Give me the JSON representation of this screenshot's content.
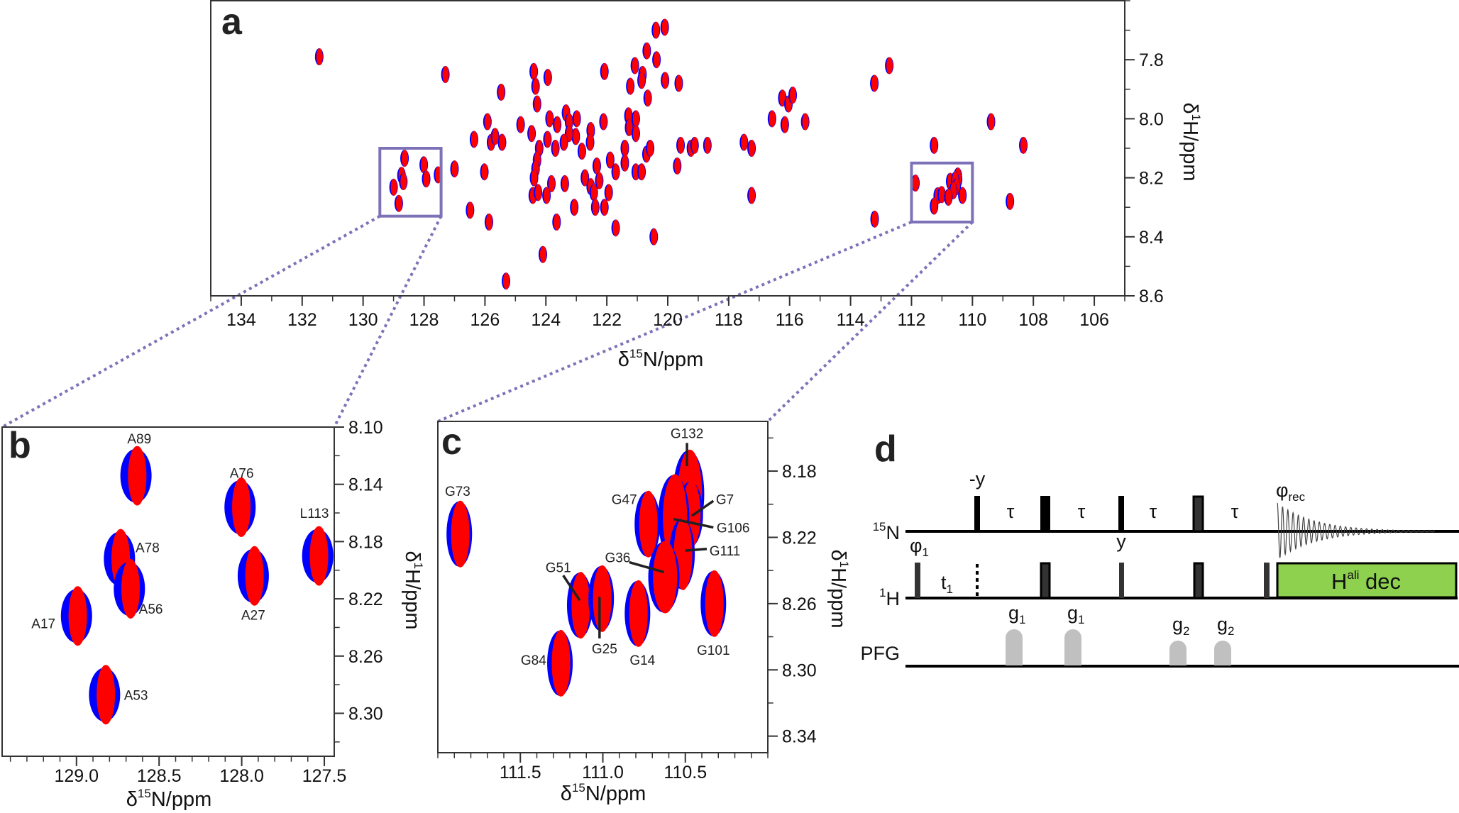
{
  "panel_labels": {
    "a": "a",
    "b": "b",
    "c": "c",
    "d": "d"
  },
  "colors": {
    "spectrum_1": "#0000ff",
    "spectrum_2": "#ff0000",
    "zoom_box": "#7d72b8",
    "decoupling": "#8ed14f",
    "gradient": "#c0c0c0"
  },
  "chart_data": [
    {
      "panel": "a",
      "type": "scatter",
      "description_kind": "2D 1H-15N correlation spectrum, two overlaid spectra (blue, red)",
      "xlabel": {
        "prefix": "δ",
        "sup": "15",
        "main": "N/ppm"
      },
      "ylabel": {
        "prefix": "δ",
        "sup": "1",
        "main": "H/ppm"
      },
      "xlim": [
        135,
        105
      ],
      "ylim": [
        7.6,
        8.6
      ],
      "xticks": [
        "134",
        "132",
        "130",
        "128",
        "126",
        "124",
        "122",
        "120",
        "118",
        "116",
        "114",
        "112",
        "110",
        "108",
        "106"
      ],
      "yticks": [
        "7.8",
        "8.0",
        "8.2",
        "8.4",
        "8.6"
      ],
      "grid": false,
      "peaks": [
        [
          131.44,
          7.79
        ],
        [
          127.3,
          7.85
        ],
        [
          124.4,
          7.84
        ],
        [
          123.94,
          7.86
        ],
        [
          124.34,
          7.89
        ],
        [
          125.47,
          7.91
        ],
        [
          124.29,
          7.95
        ],
        [
          122.08,
          7.84
        ],
        [
          121.08,
          7.82
        ],
        [
          120.83,
          7.85
        ],
        [
          120.86,
          7.87
        ],
        [
          120.69,
          7.77
        ],
        [
          120.37,
          7.8
        ],
        [
          120.39,
          7.7
        ],
        [
          120.1,
          7.69
        ],
        [
          120.09,
          7.87
        ],
        [
          121.23,
          7.89
        ],
        [
          120.66,
          7.93
        ],
        [
          125.92,
          8.01
        ],
        [
          124.83,
          8.02
        ],
        [
          124.47,
          8.05
        ],
        [
          123.88,
          8.0
        ],
        [
          123.34,
          7.98
        ],
        [
          123.63,
          8.02
        ],
        [
          123.24,
          8.01
        ],
        [
          122.99,
          8.0
        ],
        [
          122.11,
          8.01
        ],
        [
          121.29,
          7.99
        ],
        [
          121.27,
          8.03
        ],
        [
          121.05,
          8.0
        ],
        [
          121.05,
          8.05
        ],
        [
          122.53,
          8.04
        ],
        [
          122.55,
          8.08
        ],
        [
          123.02,
          8.06
        ],
        [
          123.24,
          8.05
        ],
        [
          123.41,
          8.08
        ],
        [
          123.69,
          8.1
        ],
        [
          123.95,
          8.07
        ],
        [
          124.22,
          8.1
        ],
        [
          126.36,
          8.07
        ],
        [
          125.8,
          8.08
        ],
        [
          125.44,
          8.08
        ],
        [
          125.67,
          8.06
        ],
        [
          122.82,
          8.11
        ],
        [
          124.29,
          8.14
        ],
        [
          124.34,
          8.17
        ],
        [
          124.39,
          8.2
        ],
        [
          121.89,
          8.14
        ],
        [
          122.33,
          8.16
        ],
        [
          121.41,
          8.1
        ],
        [
          121.41,
          8.15
        ],
        [
          121.71,
          8.18
        ],
        [
          120.7,
          8.12
        ],
        [
          120.58,
          8.1
        ],
        [
          121.05,
          8.18
        ],
        [
          120.86,
          8.18
        ],
        [
          122.72,
          8.2
        ],
        [
          122.53,
          8.23
        ],
        [
          122.25,
          8.21
        ],
        [
          122.43,
          8.25
        ],
        [
          121.94,
          8.25
        ],
        [
          123.82,
          8.22
        ],
        [
          123.38,
          8.22
        ],
        [
          124.43,
          8.26
        ],
        [
          124.26,
          8.25
        ],
        [
          123.98,
          8.26
        ],
        [
          123.07,
          8.3
        ],
        [
          122.38,
          8.3
        ],
        [
          122.08,
          8.3
        ],
        [
          123.65,
          8.35
        ],
        [
          121.71,
          8.37
        ],
        [
          120.46,
          8.4
        ],
        [
          124.1,
          8.46
        ],
        [
          125.31,
          8.55
        ],
        [
          126.49,
          8.31
        ],
        [
          125.87,
          8.35
        ],
        [
          126.02,
          8.18
        ],
        [
          127.0,
          8.17
        ],
        [
          119.64,
          7.88
        ],
        [
          119.58,
          8.09
        ],
        [
          119.24,
          8.1
        ],
        [
          119.12,
          8.09
        ],
        [
          118.7,
          8.09
        ],
        [
          119.69,
          8.16
        ],
        [
          117.5,
          8.08
        ],
        [
          117.25,
          8.1
        ],
        [
          117.25,
          8.26
        ],
        [
          116.58,
          8.0
        ],
        [
          116.24,
          7.93
        ],
        [
          116.04,
          7.95
        ],
        [
          115.9,
          7.92
        ],
        [
          116.16,
          8.02
        ],
        [
          115.49,
          8.01
        ],
        [
          113.22,
          7.88
        ],
        [
          112.73,
          7.82
        ],
        [
          113.21,
          8.34
        ],
        [
          111.26,
          8.09
        ],
        [
          109.39,
          8.01
        ],
        [
          108.33,
          8.09
        ],
        [
          108.77,
          8.28
        ]
      ]
    },
    {
      "panel": "b",
      "type": "scatter",
      "xlabel": {
        "prefix": "δ",
        "sup": "15",
        "main": "N/ppm"
      },
      "ylabel": {
        "prefix": "δ",
        "sup": "1",
        "main": "H/ppm"
      },
      "xlim": [
        129.45,
        127.44
      ],
      "ylim": [
        8.1,
        8.33
      ],
      "xticks": [
        "129.0",
        "128.5",
        "128.0",
        "127.5"
      ],
      "yticks": [
        "8.10",
        "8.14",
        "8.18",
        "8.22",
        "8.26",
        "8.30"
      ],
      "grid": false,
      "peaks": [
        {
          "label": "A89",
          "n": 128.64,
          "h": 8.134
        },
        {
          "label": "A76",
          "n": 128.01,
          "h": 8.156
        },
        {
          "label": "L113",
          "n": 127.54,
          "h": 8.19
        },
        {
          "label": "A78",
          "n": 128.74,
          "h": 8.192
        },
        {
          "label": "A56",
          "n": 128.68,
          "h": 8.213
        },
        {
          "label": "A27",
          "n": 127.93,
          "h": 8.204
        },
        {
          "label": "A17",
          "n": 129.0,
          "h": 8.232
        },
        {
          "label": "A53",
          "n": 128.83,
          "h": 8.287
        }
      ]
    },
    {
      "panel": "c",
      "type": "scatter",
      "xlabel": {
        "prefix": "δ",
        "sup": "15",
        "main": "N/ppm"
      },
      "ylabel": {
        "prefix": "δ",
        "sup": "1",
        "main": "H/ppm"
      },
      "xlim": [
        112.0,
        110.0
      ],
      "ylim": [
        8.15,
        8.35
      ],
      "xticks": [
        "111.5",
        "111.0",
        "110.5"
      ],
      "yticks": [
        "8.18",
        "8.22",
        "8.26",
        "8.30",
        "8.34"
      ],
      "grid": false,
      "peaks": [
        {
          "label": "G73",
          "n": 111.87,
          "h": 8.218
        },
        {
          "label": "G47",
          "n": 110.73,
          "h": 8.212
        },
        {
          "label": "G132",
          "n": 110.48,
          "h": 8.194
        },
        {
          "label": "G7",
          "n": 110.47,
          "h": 8.206
        },
        {
          "label": "G106",
          "n": 110.57,
          "h": 8.208
        },
        {
          "label": "G111",
          "n": 110.52,
          "h": 8.23
        },
        {
          "label": "G36",
          "n": 110.63,
          "h": 8.244
        },
        {
          "label": "G51",
          "n": 111.14,
          "h": 8.261
        },
        {
          "label": "G25",
          "n": 111.01,
          "h": 8.257
        },
        {
          "label": "G14",
          "n": 110.79,
          "h": 8.266
        },
        {
          "label": "G101",
          "n": 110.33,
          "h": 8.26
        },
        {
          "label": "G84",
          "n": 111.26,
          "h": 8.296
        }
      ]
    }
  ],
  "pulse_sequence": {
    "channels": {
      "n15": {
        "sup": "15",
        "main": "N"
      },
      "h1": {
        "sup": "1",
        "main": "H"
      },
      "pfg": "PFG"
    },
    "phase_minus_y": "-y",
    "phase_y": "y",
    "phi1": {
      "main": "φ",
      "sub": "1"
    },
    "phi_rec": {
      "main": "φ",
      "sub": "rec"
    },
    "t1": {
      "main": "t",
      "sub": "1"
    },
    "tau": [
      "τ",
      "τ",
      "τ",
      "τ"
    ],
    "gradients": [
      {
        "main": "g",
        "sub": "1"
      },
      {
        "main": "g",
        "sub": "1"
      },
      {
        "main": "g",
        "sub": "2"
      },
      {
        "main": "g",
        "sub": "2"
      }
    ],
    "decoupling": {
      "main": "H",
      "sup": "ali",
      "rest": " dec"
    }
  }
}
